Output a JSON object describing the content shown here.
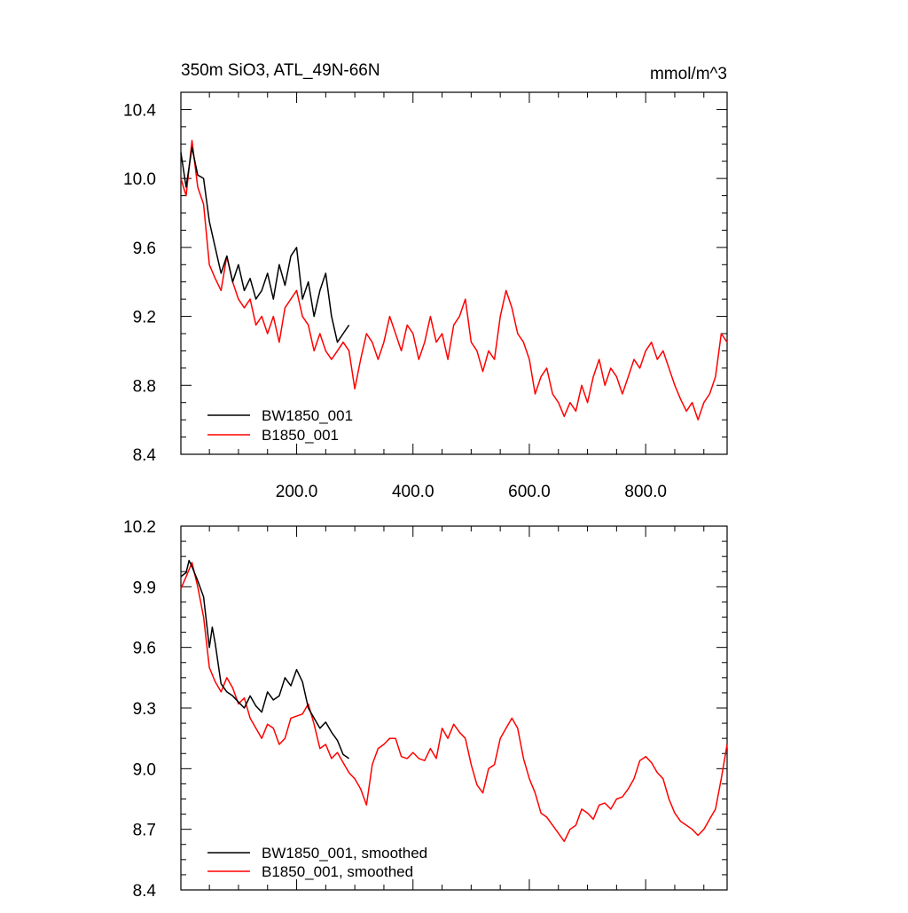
{
  "chart_data": [
    {
      "type": "line",
      "title": "350m SiO3, ATL_49N-66N",
      "units": "mmol/m^3",
      "xlim": [
        1,
        940
      ],
      "ylim": [
        8.4,
        10.5
      ],
      "yticks": [
        8.4,
        8.8,
        9.2,
        9.6,
        10.0,
        10.4
      ],
      "ytick_labels": [
        "8.4",
        "8.8",
        "9.2",
        "9.6",
        "10.0",
        "10.4"
      ],
      "xticks": [
        200,
        400,
        600,
        800
      ],
      "xtick_labels": [
        "200.0",
        "400.0",
        "600.0",
        "800.0"
      ],
      "legend_placement": "bottom-left",
      "grid": false,
      "series": [
        {
          "name": "BW1850_001",
          "color": "#000000",
          "x": [
            1,
            10,
            20,
            30,
            40,
            50,
            60,
            70,
            80,
            90,
            100,
            110,
            120,
            130,
            140,
            150,
            160,
            170,
            180,
            190,
            200,
            210,
            220,
            230,
            240,
            250,
            260,
            270,
            280,
            290
          ],
          "y": [
            10.15,
            9.95,
            10.18,
            10.02,
            10.0,
            9.75,
            9.6,
            9.45,
            9.55,
            9.4,
            9.5,
            9.35,
            9.42,
            9.3,
            9.35,
            9.45,
            9.3,
            9.5,
            9.38,
            9.55,
            9.6,
            9.3,
            9.4,
            9.2,
            9.35,
            9.45,
            9.2,
            9.05,
            9.1,
            9.15
          ]
        },
        {
          "name": "B1850_001",
          "color": "#ff0000",
          "x": [
            1,
            10,
            20,
            30,
            40,
            50,
            60,
            70,
            80,
            90,
            100,
            110,
            120,
            130,
            140,
            150,
            160,
            170,
            180,
            190,
            200,
            210,
            220,
            230,
            240,
            250,
            260,
            270,
            280,
            290,
            300,
            310,
            320,
            330,
            340,
            350,
            360,
            370,
            380,
            390,
            400,
            410,
            420,
            430,
            440,
            450,
            460,
            470,
            480,
            490,
            500,
            510,
            520,
            530,
            540,
            550,
            560,
            570,
            580,
            590,
            600,
            610,
            620,
            630,
            640,
            650,
            660,
            670,
            680,
            690,
            700,
            710,
            720,
            730,
            740,
            750,
            760,
            770,
            780,
            790,
            800,
            810,
            820,
            830,
            840,
            850,
            860,
            870,
            880,
            890,
            900,
            910,
            920,
            930,
            940
          ],
          "y": [
            10.0,
            9.9,
            10.22,
            9.95,
            9.85,
            9.5,
            9.42,
            9.35,
            9.55,
            9.4,
            9.3,
            9.25,
            9.3,
            9.15,
            9.2,
            9.1,
            9.2,
            9.05,
            9.25,
            9.3,
            9.35,
            9.2,
            9.15,
            9.0,
            9.1,
            9.0,
            8.95,
            9.0,
            9.05,
            9.0,
            8.78,
            8.95,
            9.1,
            9.05,
            8.95,
            9.05,
            9.2,
            9.1,
            9.0,
            9.15,
            9.1,
            8.95,
            9.05,
            9.2,
            9.05,
            9.1,
            8.95,
            9.15,
            9.2,
            9.3,
            9.05,
            9.0,
            8.88,
            9.0,
            8.95,
            9.2,
            9.35,
            9.25,
            9.1,
            9.05,
            8.95,
            8.75,
            8.85,
            8.9,
            8.75,
            8.7,
            8.62,
            8.7,
            8.65,
            8.8,
            8.7,
            8.85,
            8.95,
            8.8,
            8.9,
            8.85,
            8.75,
            8.85,
            8.95,
            8.9,
            9.0,
            9.05,
            8.95,
            9.0,
            8.9,
            8.8,
            8.72,
            8.65,
            8.7,
            8.6,
            8.7,
            8.75,
            8.85,
            9.1,
            9.05
          ]
        }
      ]
    },
    {
      "type": "line",
      "xlim": [
        1,
        940
      ],
      "ylim": [
        8.4,
        10.2
      ],
      "yticks": [
        8.4,
        8.7,
        9.0,
        9.3,
        9.6,
        9.9,
        10.2
      ],
      "ytick_labels": [
        "8.4",
        "8.7",
        "9.0",
        "9.3",
        "9.6",
        "9.9",
        "10.2"
      ],
      "xticks": [
        200,
        400,
        600,
        800
      ],
      "legend_placement": "bottom-left",
      "grid": false,
      "series": [
        {
          "name": "BW1850_001, smoothed",
          "color": "#000000",
          "x": [
            1,
            10,
            15,
            20,
            30,
            40,
            50,
            55,
            60,
            70,
            80,
            90,
            100,
            110,
            120,
            130,
            140,
            150,
            160,
            170,
            180,
            190,
            200,
            210,
            220,
            230,
            240,
            250,
            260,
            270,
            280,
            290
          ],
          "y": [
            9.95,
            9.97,
            10.03,
            10.0,
            9.93,
            9.85,
            9.6,
            9.7,
            9.62,
            9.42,
            9.38,
            9.36,
            9.33,
            9.3,
            9.36,
            9.31,
            9.28,
            9.38,
            9.34,
            9.36,
            9.45,
            9.41,
            9.49,
            9.43,
            9.3,
            9.25,
            9.2,
            9.23,
            9.18,
            9.14,
            9.07,
            9.05
          ]
        },
        {
          "name": "B1850_001, smoothed",
          "color": "#ff0000",
          "x": [
            1,
            10,
            20,
            30,
            40,
            50,
            60,
            70,
            80,
            90,
            100,
            110,
            120,
            130,
            140,
            150,
            160,
            170,
            180,
            190,
            200,
            210,
            220,
            230,
            240,
            250,
            260,
            270,
            280,
            290,
            300,
            310,
            320,
            330,
            340,
            350,
            360,
            370,
            380,
            390,
            400,
            410,
            420,
            430,
            440,
            450,
            460,
            470,
            480,
            490,
            500,
            510,
            520,
            530,
            540,
            550,
            560,
            570,
            580,
            590,
            600,
            610,
            620,
            630,
            640,
            650,
            660,
            670,
            680,
            690,
            700,
            710,
            720,
            730,
            740,
            750,
            760,
            770,
            780,
            790,
            800,
            810,
            820,
            830,
            840,
            850,
            860,
            870,
            880,
            890,
            900,
            910,
            920,
            930,
            940
          ],
          "y": [
            9.89,
            9.95,
            10.02,
            9.9,
            9.75,
            9.5,
            9.43,
            9.38,
            9.45,
            9.4,
            9.32,
            9.35,
            9.25,
            9.2,
            9.15,
            9.22,
            9.2,
            9.12,
            9.15,
            9.25,
            9.26,
            9.27,
            9.32,
            9.22,
            9.1,
            9.12,
            9.05,
            9.08,
            9.03,
            8.98,
            8.95,
            8.9,
            8.82,
            9.02,
            9.1,
            9.12,
            9.15,
            9.15,
            9.06,
            9.05,
            9.08,
            9.05,
            9.04,
            9.1,
            9.05,
            9.2,
            9.15,
            9.22,
            9.18,
            9.15,
            9.02,
            8.92,
            8.88,
            9.0,
            9.02,
            9.15,
            9.2,
            9.25,
            9.2,
            9.05,
            8.95,
            8.88,
            8.78,
            8.76,
            8.72,
            8.68,
            8.64,
            8.7,
            8.72,
            8.8,
            8.78,
            8.75,
            8.82,
            8.83,
            8.8,
            8.85,
            8.86,
            8.9,
            8.95,
            9.04,
            9.06,
            9.03,
            8.98,
            8.95,
            8.85,
            8.78,
            8.74,
            8.72,
            8.7,
            8.67,
            8.7,
            8.75,
            8.8,
            8.95,
            9.12
          ]
        }
      ]
    }
  ]
}
